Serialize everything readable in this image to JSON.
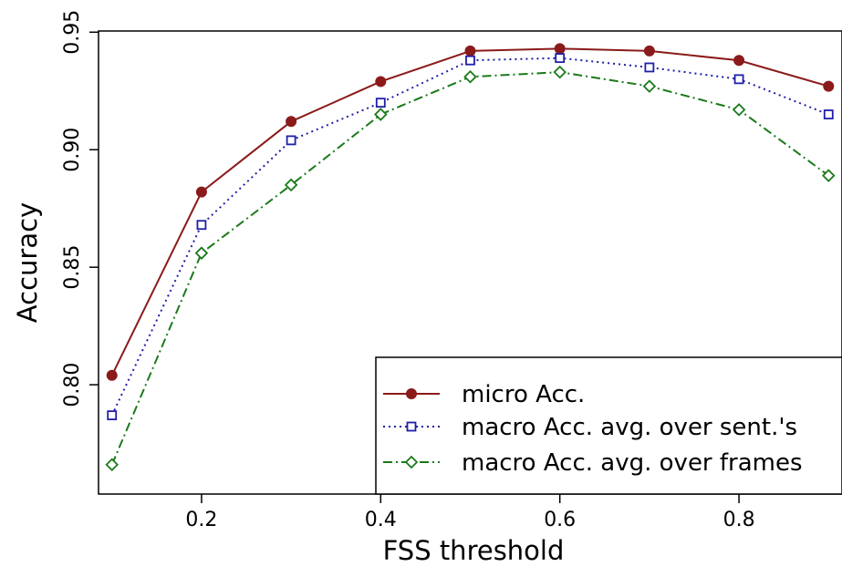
{
  "chart_data": {
    "type": "line",
    "xlabel": "FSS threshold",
    "ylabel": "Accuracy",
    "xlim": [
      0.085,
      0.915
    ],
    "ylim": [
      0.7535,
      0.9505
    ],
    "x_ticks": [
      0.2,
      0.4,
      0.6,
      0.8
    ],
    "x_tick_labels": [
      "0.2",
      "0.4",
      "0.6",
      "0.8"
    ],
    "y_ticks": [
      0.8,
      0.85,
      0.9,
      0.95
    ],
    "y_tick_labels": [
      "0.80",
      "0.85",
      "0.90",
      "0.95"
    ],
    "x": [
      0.1,
      0.2,
      0.3,
      0.4,
      0.5,
      0.6,
      0.7,
      0.8,
      0.9
    ],
    "grid": false,
    "legend_position": "bottom-right",
    "series": [
      {
        "name": "micro Acc.",
        "values": [
          0.804,
          0.882,
          0.912,
          0.929,
          0.942,
          0.943,
          0.942,
          0.938,
          0.927
        ],
        "color": "#8b1a1a",
        "line_style": "solid",
        "marker": "filled-circle"
      },
      {
        "name": "macro Acc. avg. over sent.'s",
        "values": [
          0.787,
          0.868,
          0.904,
          0.92,
          0.938,
          0.939,
          0.935,
          0.93,
          0.915
        ],
        "color": "#1f1fa8",
        "line_style": "dotted",
        "marker": "open-square"
      },
      {
        "name": "macro Acc. avg. over frames",
        "values": [
          0.766,
          0.856,
          0.885,
          0.915,
          0.931,
          0.933,
          0.927,
          0.917,
          0.889
        ],
        "color": "#1a7a1a",
        "line_style": "dash-dot",
        "marker": "open-diamond"
      }
    ]
  }
}
